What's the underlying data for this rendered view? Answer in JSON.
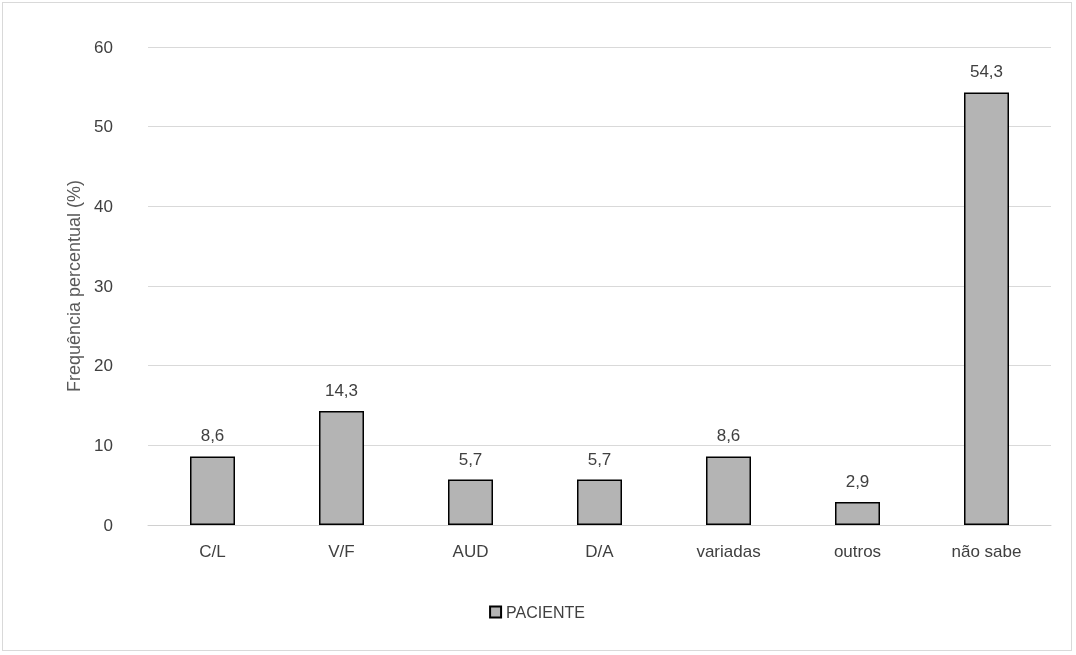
{
  "chart_data": {
    "type": "bar",
    "ylabel": "Frequência percentual (%)",
    "categories": [
      "C/L",
      "V/F",
      "AUD",
      "D/A",
      "variadas",
      "outros",
      "não sabe"
    ],
    "series": [
      {
        "name": "PACIENTE",
        "color": "#b4b4b4",
        "values": [
          8.6,
          14.3,
          5.7,
          5.7,
          8.6,
          2.9,
          54.3
        ],
        "value_labels": [
          "8,6",
          "14,3",
          "5,7",
          "5,7",
          "8,6",
          "2,9",
          "54,3"
        ]
      }
    ],
    "ylim": [
      0,
      60
    ],
    "yticks": [
      0,
      10,
      20,
      30,
      40,
      50,
      60
    ],
    "grid": "y",
    "legend": "bottom"
  }
}
